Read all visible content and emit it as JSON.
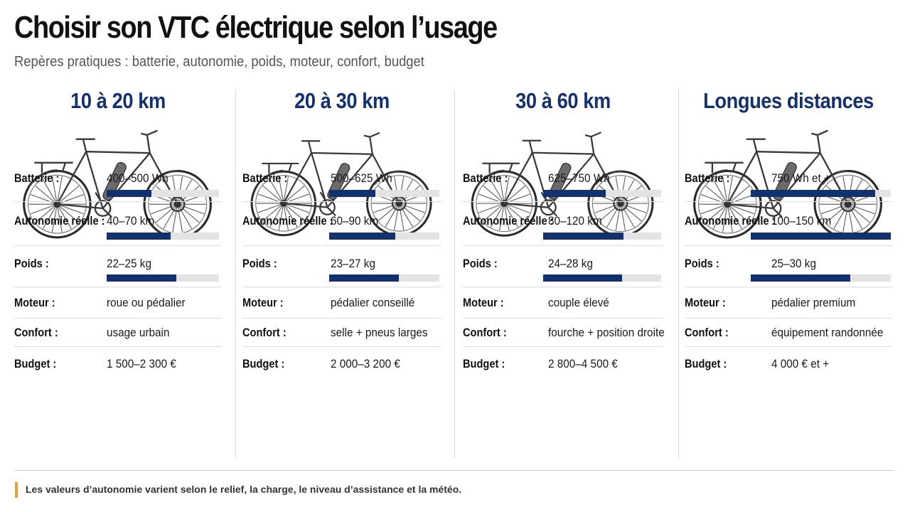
{
  "title": "Choisir son VTC électrique selon l’usage",
  "subtitle": "Repères pratiques : batterie, autonomie, poids, moteur, confort, budget",
  "labels": {
    "batterie": "Batterie :",
    "autonomie": "Autonomie réelle :",
    "poids": "Poids :",
    "moteur": "Moteur :",
    "confort": "Confort :",
    "budget": "Budget :"
  },
  "columns": [
    {
      "title": "10 à 20 km",
      "batterie": "400–500 Wh",
      "batterie_level": 0.4,
      "autonomie": "40–70 km",
      "autonomie_level": 0.57,
      "poids": "22–25 kg",
      "poids_level": 0.62,
      "moteur": "roue ou pédalier",
      "confort": "usage urbain",
      "budget": "1 500–2 300 €"
    },
    {
      "title": "20 à 30 km",
      "batterie": "500–625 Wh",
      "batterie_level": 0.42,
      "autonomie": "60–90 km",
      "autonomie_level": 0.6,
      "poids": "23–27 kg",
      "poids_level": 0.63,
      "moteur": "pédalier conseillé",
      "confort": "selle + pneus larges",
      "budget": "2 000–3 200 €"
    },
    {
      "title": "30 à 60 km",
      "batterie": "625–750 Wh",
      "batterie_level": 0.53,
      "autonomie": "80–120 km",
      "autonomie_level": 0.68,
      "poids": "24–28 kg",
      "poids_level": 0.67,
      "moteur": "couple élevé",
      "confort": "fourche + position droite",
      "budget": "2 800–4 500 €"
    },
    {
      "title": "Longues distances",
      "batterie": "750 Wh et +",
      "batterie_level": 0.89,
      "autonomie": "100–150 km",
      "autonomie_level": 1.0,
      "poids": "25–30 kg",
      "poids_level": 0.71,
      "moteur": "pédalier premium",
      "confort": "équipement randonnée",
      "budget": "4 000 € et +"
    }
  ],
  "footer_note": "Les valeurs d’autonomie varient selon le relief, la charge, le niveau d’assistance et la météo.",
  "colors": {
    "accent": "#13306f",
    "bar_track": "#e3e3e3",
    "footer_accent": "#e3a233"
  }
}
